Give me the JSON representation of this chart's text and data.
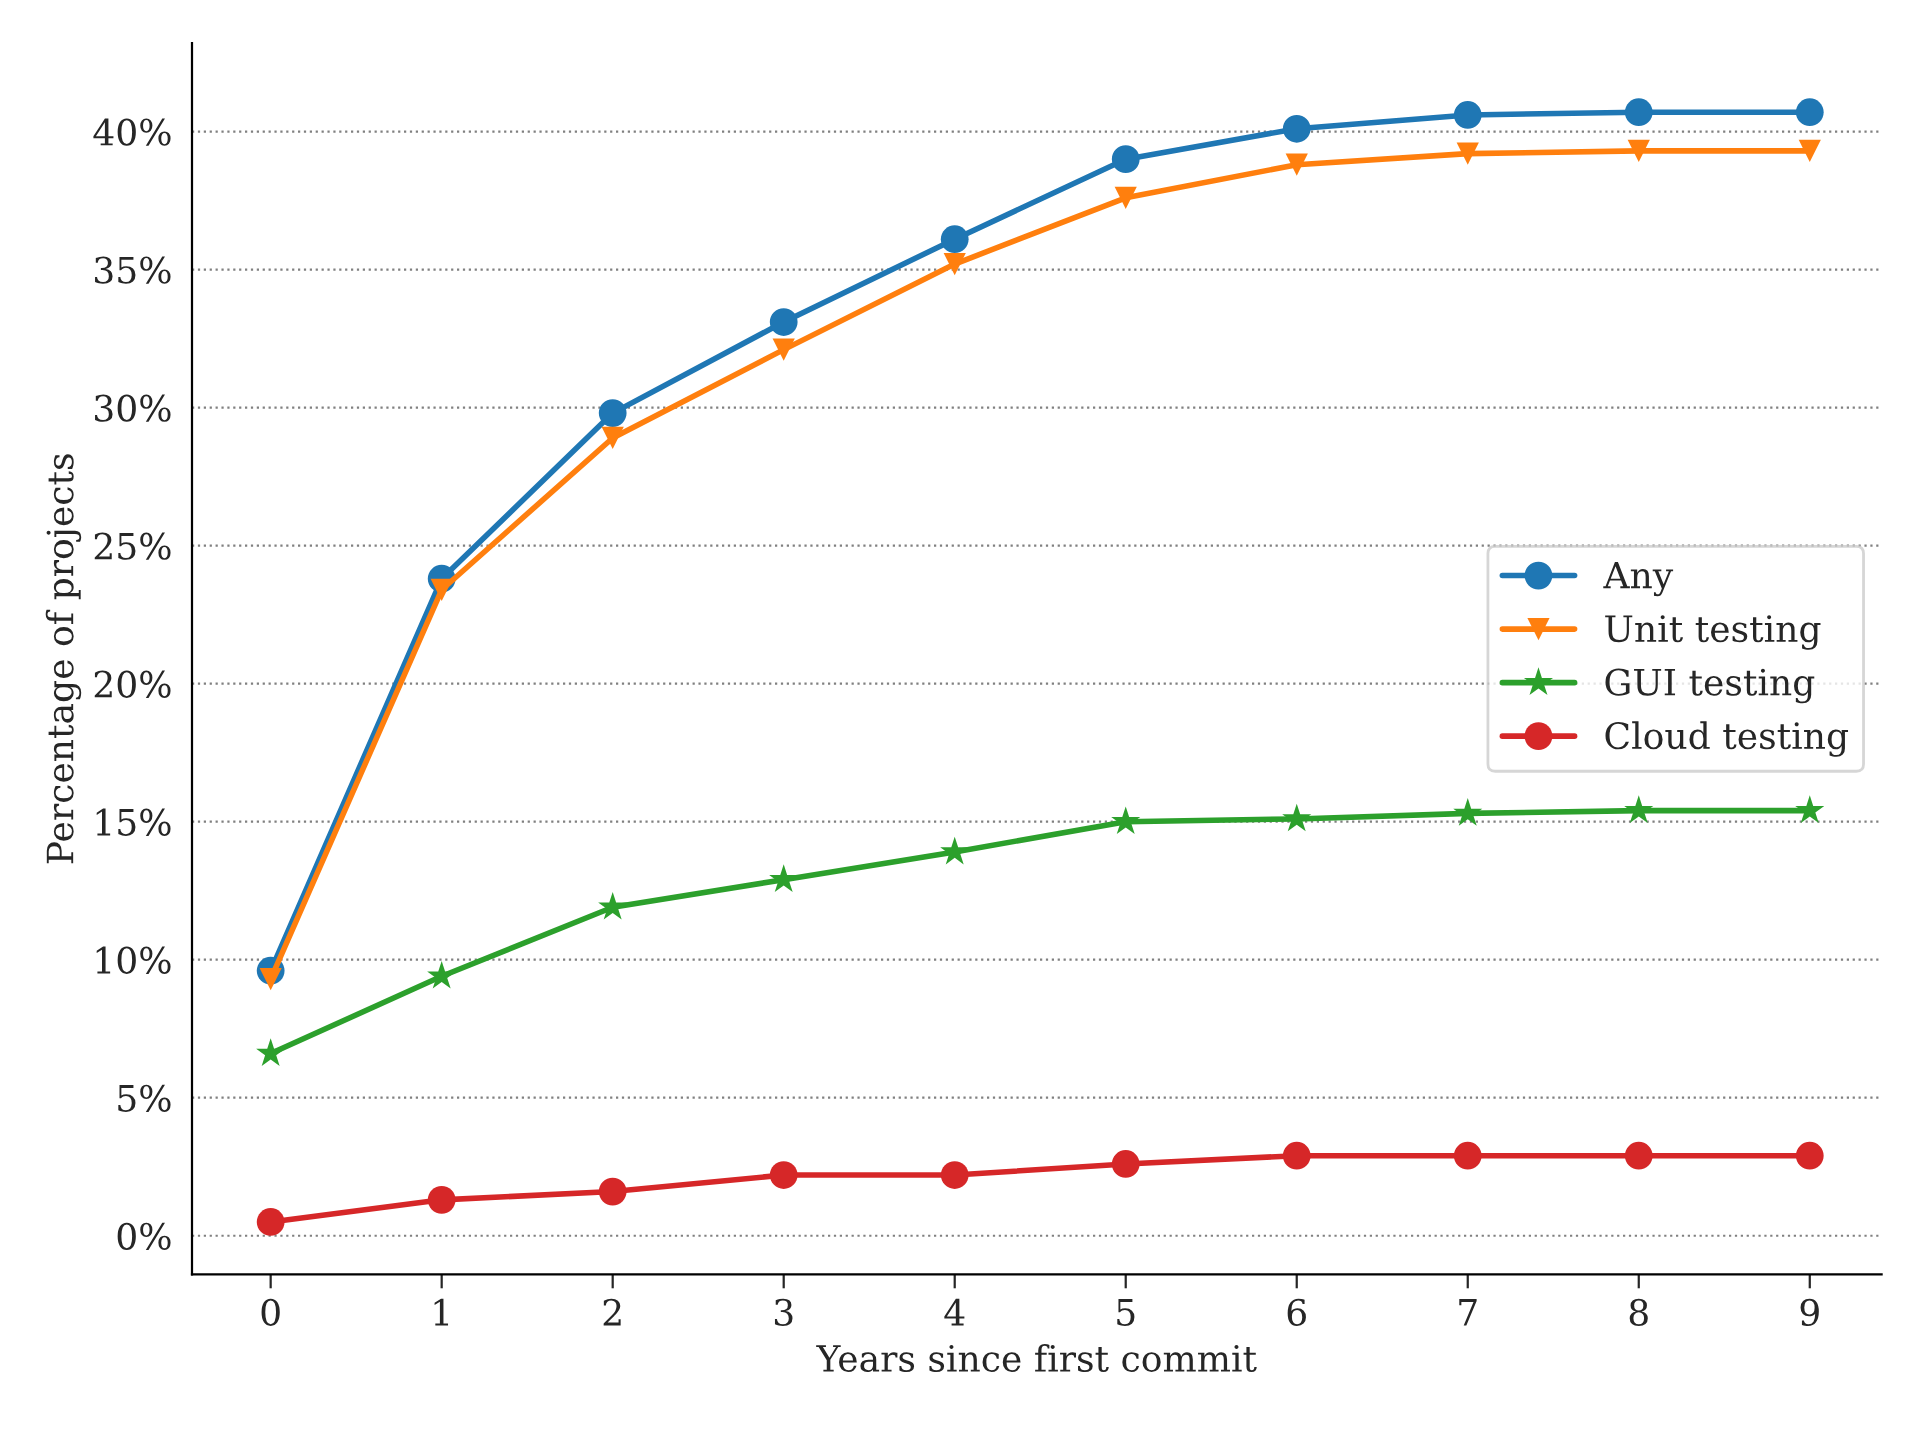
{
  "chart_data": {
    "type": "line",
    "xlabel": "Years since first commit",
    "ylabel": "Percentage of projects",
    "x": [
      0,
      1,
      2,
      3,
      4,
      5,
      6,
      7,
      8,
      9
    ],
    "series": [
      {
        "name": "Any",
        "color": "#1f77b4",
        "marker": "circle",
        "values": [
          9.6,
          23.8,
          29.8,
          33.1,
          36.1,
          39.0,
          40.1,
          40.6,
          40.7,
          40.7
        ]
      },
      {
        "name": "Unit testing",
        "color": "#ff7f0e",
        "marker": "triangle",
        "values": [
          9.3,
          23.4,
          28.9,
          32.1,
          35.2,
          37.6,
          38.8,
          39.2,
          39.3,
          39.3
        ]
      },
      {
        "name": "GUI testing",
        "color": "#2ca02c",
        "marker": "star",
        "values": [
          6.6,
          9.4,
          11.9,
          12.9,
          13.9,
          15.0,
          15.1,
          15.3,
          15.4,
          15.4
        ]
      },
      {
        "name": "Cloud testing",
        "color": "#d62728",
        "marker": "circle",
        "values": [
          0.5,
          1.3,
          1.6,
          2.2,
          2.2,
          2.6,
          2.9,
          2.9,
          2.9,
          2.9
        ]
      }
    ],
    "xlim": [
      -0.46,
      9.42
    ],
    "xticks": [
      0,
      1,
      2,
      3,
      4,
      5,
      6,
      7,
      8,
      9
    ],
    "ylim": [
      -1.4,
      43.2
    ],
    "yticks": [
      {
        "value": 0,
        "label": "0%"
      },
      {
        "value": 5,
        "label": "5%"
      },
      {
        "value": 10,
        "label": "10%"
      },
      {
        "value": 15,
        "label": "15%"
      },
      {
        "value": 20,
        "label": "20%"
      },
      {
        "value": 25,
        "label": "25%"
      },
      {
        "value": 30,
        "label": "30%"
      },
      {
        "value": 35,
        "label": "35%"
      },
      {
        "value": 40,
        "label": "40%"
      }
    ],
    "grid": "y",
    "legend": "center right",
    "line_style": "solid"
  }
}
